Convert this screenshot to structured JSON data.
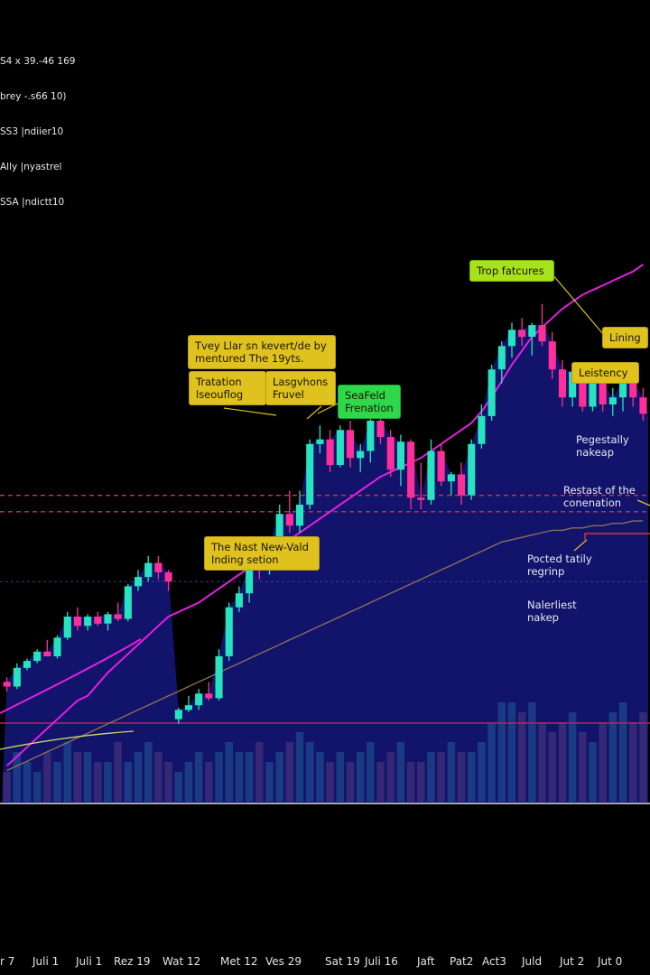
{
  "legend": [
    "S4 x 39.-46 169",
    "brey -.s66 10)",
    "SS3 |ndiier10",
    "Ally |nyastrel",
    "SSA |ndictt10"
  ],
  "annotations": [
    {
      "text": "Tvey Llar sn kevert/de by\nmentured The 19yts.",
      "style": "yellow"
    },
    {
      "text": "Tratation\nlseouflog",
      "style": "yellow"
    },
    {
      "text": "Lasgvhons\nFruvel",
      "style": "yellow"
    },
    {
      "text": "SeaFeld\nFrenation",
      "style": "green"
    },
    {
      "text": "The Nast New-Vald\nInding setion",
      "style": "yellow"
    },
    {
      "text": "Trop fatcures",
      "style": "lime"
    },
    {
      "text": "Lining",
      "style": "yellow"
    },
    {
      "text": "Leistency",
      "style": "yellow"
    }
  ],
  "notes": [
    "Pegestally\nnakeap",
    "Restast of the\nconenation",
    "Pocted tatily\nregrinp",
    "Nalerliest\nnakep"
  ],
  "colors": {
    "background": "#000000",
    "bull": "#27e3c0",
    "bear": "#ff2f9a",
    "area": "#121570",
    "ma_fast": "#e51fe0",
    "ma_slow": "#8c6f5a",
    "ma_light": "#c9d66a",
    "dashed": "#e0303a",
    "volume_bull": "#1c3f86",
    "volume_bear": "#3a2a78"
  },
  "chart_data": {
    "type": "candlestick",
    "x_tick_labels": [
      "r 7",
      "Juli 1",
      "Juli 1",
      "Rez 19",
      "Wat 12",
      "Met 12",
      "Ves 29",
      "Sat 19",
      "Juli 16",
      "Jaft",
      "Pat2",
      "Act3",
      "Juld",
      "Jut 2",
      "Jut 0"
    ],
    "candles": [
      {
        "o": 96,
        "h": 98,
        "l": 92,
        "c": 94
      },
      {
        "o": 94,
        "h": 104,
        "l": 93,
        "c": 102
      },
      {
        "o": 102,
        "h": 106,
        "l": 101,
        "c": 105
      },
      {
        "o": 105,
        "h": 110,
        "l": 104,
        "c": 109
      },
      {
        "o": 109,
        "h": 114,
        "l": 107,
        "c": 107
      },
      {
        "o": 107,
        "h": 116,
        "l": 106,
        "c": 115
      },
      {
        "o": 115,
        "h": 126,
        "l": 114,
        "c": 124
      },
      {
        "o": 124,
        "h": 128,
        "l": 118,
        "c": 120
      },
      {
        "o": 120,
        "h": 125,
        "l": 118,
        "c": 124
      },
      {
        "o": 124,
        "h": 126,
        "l": 120,
        "c": 121
      },
      {
        "o": 121,
        "h": 126,
        "l": 118,
        "c": 125
      },
      {
        "o": 125,
        "h": 130,
        "l": 122,
        "c": 123
      },
      {
        "o": 123,
        "h": 138,
        "l": 122,
        "c": 137
      },
      {
        "o": 137,
        "h": 144,
        "l": 135,
        "c": 141
      },
      {
        "o": 141,
        "h": 150,
        "l": 139,
        "c": 147
      },
      {
        "o": 147,
        "h": 150,
        "l": 140,
        "c": 143
      },
      {
        "o": 143,
        "h": 144,
        "l": 135,
        "c": 139
      },
      {
        "o": 80,
        "h": 85,
        "l": 78,
        "c": 84
      },
      {
        "o": 84,
        "h": 90,
        "l": 83,
        "c": 86
      },
      {
        "o": 86,
        "h": 93,
        "l": 84,
        "c": 91
      },
      {
        "o": 91,
        "h": 96,
        "l": 88,
        "c": 89
      },
      {
        "o": 89,
        "h": 110,
        "l": 88,
        "c": 107
      },
      {
        "o": 107,
        "h": 130,
        "l": 105,
        "c": 128
      },
      {
        "o": 128,
        "h": 137,
        "l": 126,
        "c": 134
      },
      {
        "o": 134,
        "h": 148,
        "l": 130,
        "c": 146
      },
      {
        "o": 146,
        "h": 152,
        "l": 140,
        "c": 144
      },
      {
        "o": 144,
        "h": 158,
        "l": 142,
        "c": 155
      },
      {
        "o": 155,
        "h": 172,
        "l": 152,
        "c": 168
      },
      {
        "o": 168,
        "h": 178,
        "l": 160,
        "c": 163
      },
      {
        "o": 163,
        "h": 178,
        "l": 160,
        "c": 172
      },
      {
        "o": 172,
        "h": 200,
        "l": 170,
        "c": 198
      },
      {
        "o": 198,
        "h": 206,
        "l": 194,
        "c": 200
      },
      {
        "o": 200,
        "h": 204,
        "l": 186,
        "c": 189
      },
      {
        "o": 189,
        "h": 206,
        "l": 188,
        "c": 204
      },
      {
        "o": 204,
        "h": 208,
        "l": 188,
        "c": 192
      },
      {
        "o": 192,
        "h": 198,
        "l": 186,
        "c": 195
      },
      {
        "o": 195,
        "h": 210,
        "l": 190,
        "c": 208
      },
      {
        "o": 208,
        "h": 211,
        "l": 198,
        "c": 201
      },
      {
        "o": 201,
        "h": 204,
        "l": 184,
        "c": 187
      },
      {
        "o": 187,
        "h": 202,
        "l": 180,
        "c": 199
      },
      {
        "o": 199,
        "h": 200,
        "l": 170,
        "c": 175
      },
      {
        "o": 175,
        "h": 190,
        "l": 170,
        "c": 174
      },
      {
        "o": 174,
        "h": 200,
        "l": 172,
        "c": 195
      },
      {
        "o": 195,
        "h": 198,
        "l": 180,
        "c": 182
      },
      {
        "o": 182,
        "h": 186,
        "l": 176,
        "c": 185
      },
      {
        "o": 185,
        "h": 190,
        "l": 172,
        "c": 176
      },
      {
        "o": 176,
        "h": 200,
        "l": 174,
        "c": 198
      },
      {
        "o": 198,
        "h": 215,
        "l": 196,
        "c": 210
      },
      {
        "o": 210,
        "h": 232,
        "l": 208,
        "c": 230
      },
      {
        "o": 230,
        "h": 242,
        "l": 224,
        "c": 240
      },
      {
        "o": 240,
        "h": 250,
        "l": 235,
        "c": 247
      },
      {
        "o": 247,
        "h": 252,
        "l": 240,
        "c": 244
      },
      {
        "o": 244,
        "h": 250,
        "l": 236,
        "c": 249
      },
      {
        "o": 249,
        "h": 258,
        "l": 240,
        "c": 242
      },
      {
        "o": 242,
        "h": 246,
        "l": 226,
        "c": 230
      },
      {
        "o": 230,
        "h": 234,
        "l": 214,
        "c": 218
      },
      {
        "o": 218,
        "h": 232,
        "l": 214,
        "c": 229
      },
      {
        "o": 229,
        "h": 233,
        "l": 212,
        "c": 214
      },
      {
        "o": 214,
        "h": 226,
        "l": 212,
        "c": 224
      },
      {
        "o": 224,
        "h": 228,
        "l": 212,
        "c": 215
      },
      {
        "o": 215,
        "h": 222,
        "l": 210,
        "c": 218
      },
      {
        "o": 218,
        "h": 226,
        "l": 212,
        "c": 225
      },
      {
        "o": 225,
        "h": 228,
        "l": 214,
        "c": 218
      },
      {
        "o": 218,
        "h": 222,
        "l": 208,
        "c": 211
      }
    ],
    "volume": [
      3,
      5,
      4,
      3,
      5,
      4,
      6,
      5,
      5,
      4,
      4,
      6,
      4,
      5,
      6,
      5,
      4,
      3,
      4,
      5,
      4,
      5,
      6,
      5,
      5,
      6,
      4,
      5,
      6,
      7,
      6,
      5,
      4,
      5,
      4,
      5,
      6,
      4,
      5,
      6,
      4,
      4,
      5,
      5,
      6,
      5,
      5,
      6,
      8,
      10,
      10,
      9,
      10,
      8,
      7,
      8,
      9,
      7,
      6,
      8,
      9,
      10,
      8,
      9
    ],
    "ma_fast": [
      60,
      64,
      68,
      72,
      76,
      80,
      84,
      88,
      90,
      95,
      100,
      104,
      108,
      112,
      116,
      120,
      124,
      126,
      128,
      130,
      133,
      136,
      139,
      142,
      145,
      148,
      151,
      154,
      157,
      160,
      163,
      166,
      169,
      172,
      175,
      178,
      181,
      184,
      186,
      188,
      190,
      192,
      195,
      198,
      201,
      204,
      207,
      212,
      218,
      225,
      232,
      238,
      244,
      248,
      252,
      256,
      259,
      262,
      264,
      266,
      268,
      270,
      272,
      275
    ],
    "ma_slow": [
      58,
      60,
      62,
      64,
      66,
      68,
      70,
      72,
      74,
      76,
      78,
      80,
      82,
      84,
      86,
      88,
      90,
      92,
      94,
      96,
      98,
      100,
      102,
      104,
      106,
      108,
      110,
      112,
      114,
      116,
      118,
      120,
      122,
      124,
      126,
      128,
      130,
      132,
      134,
      136,
      138,
      140,
      142,
      144,
      146,
      148,
      150,
      152,
      154,
      156,
      157,
      158,
      159,
      160,
      161,
      161,
      162,
      162,
      163,
      163,
      164,
      164,
      165,
      165
    ],
    "reference_levels": [
      176,
      169,
      139
    ],
    "ylim": [
      40,
      280
    ]
  }
}
